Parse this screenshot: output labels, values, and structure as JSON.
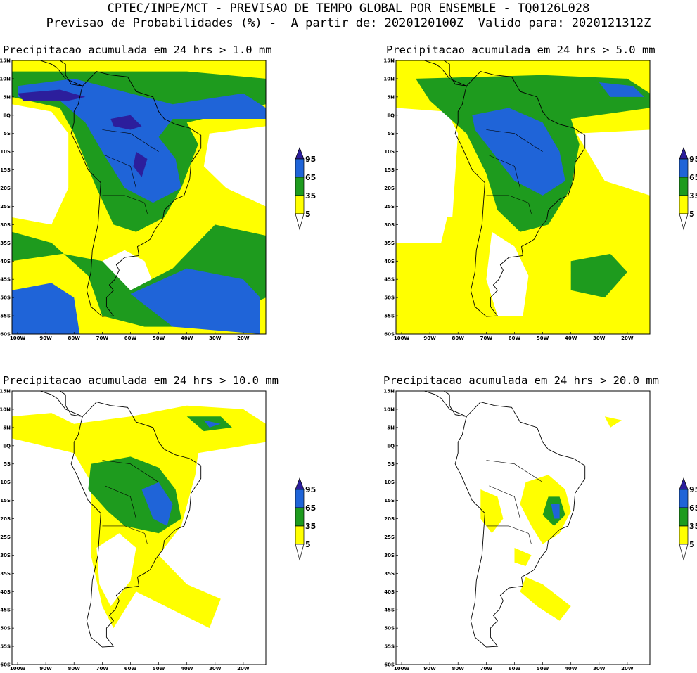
{
  "header": {
    "line1": "CPTEC/INPE/MCT - PREVISAO DE TEMPO GLOBAL POR ENSEMBLE - TQ0126L028",
    "line2": "Previsao de Probabilidades (%) -  A partir de: 2020120100Z  Valido para: 2020121312Z"
  },
  "lat_ticks": [
    "15N",
    "10N",
    "5N",
    "EQ",
    "5S",
    "10S",
    "15S",
    "20S",
    "25S",
    "30S",
    "35S",
    "40S",
    "45S",
    "50S",
    "55S",
    "60S"
  ],
  "lon_ticks": [
    "100W",
    "90W",
    "80W",
    "70W",
    "60W",
    "50W",
    "40W",
    "30W",
    "20W"
  ],
  "legend_levels": [
    "95",
    "65",
    "35",
    "5"
  ],
  "colors": {
    "yellow": "#ffff00",
    "green": "#1e9b1e",
    "blue": "#1f64d8",
    "navy": "#2c1e9c",
    "land": "#ffffff",
    "line": "#000000"
  },
  "panels": [
    {
      "id": "p1",
      "title": "Precipitacao acumulada em 24 hrs > 1.0 mm",
      "threshold_mm": 1.0
    },
    {
      "id": "p2",
      "title": "Precipitacao acumulada em 24 hrs > 5.0 mm",
      "threshold_mm": 5.0
    },
    {
      "id": "p3",
      "title": "Precipitacao acumulada em 24 hrs > 10.0 mm",
      "threshold_mm": 10.0
    },
    {
      "id": "p4",
      "title": "Precipitacao acumulada em 24 hrs > 20.0 mm",
      "threshold_mm": 20.0
    }
  ]
}
